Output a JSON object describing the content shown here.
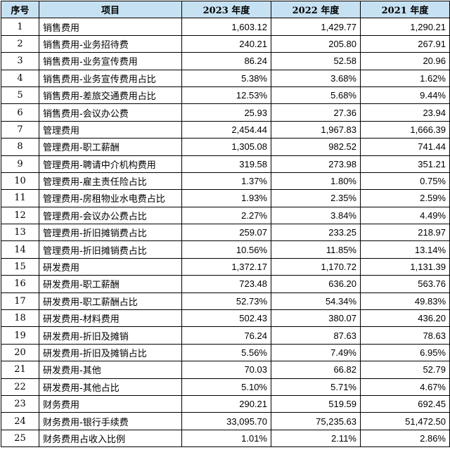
{
  "headers": [
    "序号",
    "项目",
    "2023 年度",
    "2022 年度",
    "2021 年度"
  ],
  "rows": [
    {
      "seq": "1",
      "item": "销售费用",
      "y2023": "1,603.12",
      "y2022": "1,429.77",
      "y2021": "1,290.21"
    },
    {
      "seq": "2",
      "item": "销售费用-业务招待费",
      "y2023": "240.21",
      "y2022": "205.80",
      "y2021": "267.91"
    },
    {
      "seq": "3",
      "item": "销售费用-业务宣传费用",
      "y2023": "86.24",
      "y2022": "52.58",
      "y2021": "20.96"
    },
    {
      "seq": "4",
      "item": "销售费用-业务宣传费用占比",
      "y2023": "5.38%",
      "y2022": "3.68%",
      "y2021": "1.62%"
    },
    {
      "seq": "5",
      "item": "销售费用-差旅交通费用占比",
      "y2023": "12.53%",
      "y2022": "5.68%",
      "y2021": "9.44%"
    },
    {
      "seq": "6",
      "item": "销售费用-会议办公费",
      "y2023": "25.93",
      "y2022": "27.36",
      "y2021": "23.94"
    },
    {
      "seq": "7",
      "item": "管理费用",
      "y2023": "2,454.44",
      "y2022": "1,967.83",
      "y2021": "1,666.39"
    },
    {
      "seq": "8",
      "item": "管理费用-职工薪酬",
      "y2023": "1,305.08",
      "y2022": "982.52",
      "y2021": "741.44"
    },
    {
      "seq": "9",
      "item": "管理费用-聘请中介机构费用",
      "y2023": "319.58",
      "y2022": "273.98",
      "y2021": "351.21"
    },
    {
      "seq": "10",
      "item": "管理费用-雇主责任险占比",
      "y2023": "1.37%",
      "y2022": "1.80%",
      "y2021": "0.75%"
    },
    {
      "seq": "11",
      "item": "管理费用-房租物业水电费占比",
      "y2023": "1.93%",
      "y2022": "2.35%",
      "y2021": "2.59%"
    },
    {
      "seq": "12",
      "item": "管理费用-会议办公费占比",
      "y2023": "2.27%",
      "y2022": "3.84%",
      "y2021": "4.49%"
    },
    {
      "seq": "13",
      "item": "管理费用-折旧摊销费占比",
      "y2023": "259.07",
      "y2022": "233.25",
      "y2021": "218.97"
    },
    {
      "seq": "14",
      "item": "管理费用-折旧摊销费占比",
      "y2023": "10.56%",
      "y2022": "11.85%",
      "y2021": "13.14%"
    },
    {
      "seq": "15",
      "item": "研发费用",
      "y2023": "1,372.17",
      "y2022": "1,170.72",
      "y2021": "1,131.39"
    },
    {
      "seq": "16",
      "item": "研发费用-职工薪酬",
      "y2023": "723.48",
      "y2022": "636.20",
      "y2021": "563.76"
    },
    {
      "seq": "17",
      "item": "研发费用-职工薪酬占比",
      "y2023": "52.73%",
      "y2022": "54.34%",
      "y2021": "49.83%"
    },
    {
      "seq": "18",
      "item": "研发费用-材料费用",
      "y2023": "502.43",
      "y2022": "380.07",
      "y2021": "436.20"
    },
    {
      "seq": "19",
      "item": "研发费用-折旧及摊销",
      "y2023": "76.24",
      "y2022": "87.63",
      "y2021": "78.63"
    },
    {
      "seq": "20",
      "item": "研发费用-折旧及摊销占比",
      "y2023": "5.56%",
      "y2022": "7.49%",
      "y2021": "6.95%"
    },
    {
      "seq": "21",
      "item": "研发费用-其他",
      "y2023": "70.03",
      "y2022": "66.82",
      "y2021": "52.79"
    },
    {
      "seq": "22",
      "item": "研发费用-其他占比",
      "y2023": "5.10%",
      "y2022": "5.71%",
      "y2021": "4.67%"
    },
    {
      "seq": "23",
      "item": "财务费用",
      "y2023": "290.21",
      "y2022": "519.59",
      "y2021": "692.45"
    },
    {
      "seq": "24",
      "item": "财务费用-银行手续费",
      "y2023": "33,095.70",
      "y2022": "75,235.63",
      "y2021": "51,472.50"
    },
    {
      "seq": "25",
      "item": "财务费用占收入比例",
      "y2023": "1.01%",
      "y2022": "2.11%",
      "y2021": "2.86%"
    }
  ]
}
